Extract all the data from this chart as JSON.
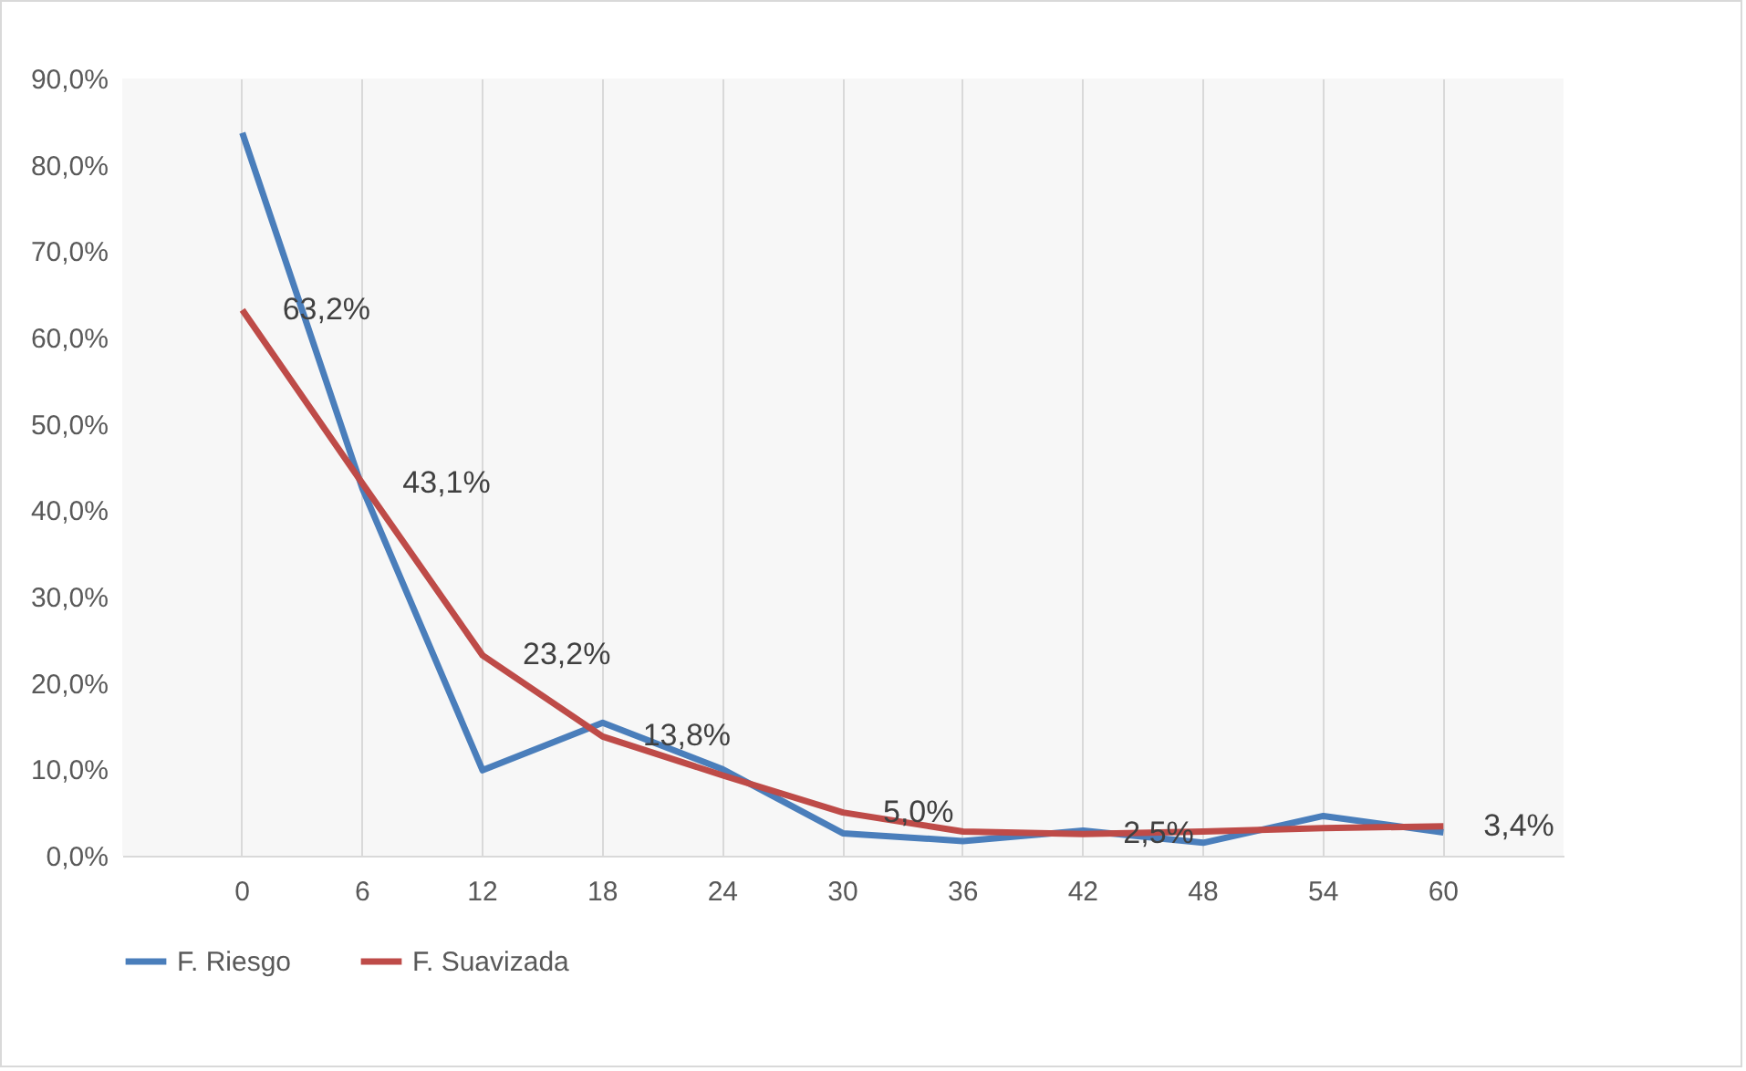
{
  "chart_data": {
    "type": "line",
    "categories": [
      "0",
      "6",
      "12",
      "18",
      "24",
      "30",
      "36",
      "42",
      "48",
      "54",
      "60"
    ],
    "series": [
      {
        "name": "F. Riesgo",
        "color": "#4a7ebb",
        "values": [
          83.7,
          42.5,
          9.9,
          15.4,
          10,
          2.6,
          1.7,
          2.9,
          1.5,
          4.6,
          2.7
        ]
      },
      {
        "name": "F. Suavizada",
        "color": "#be4b48",
        "values": [
          63.2,
          43.1,
          23.2,
          13.8,
          9.3,
          5.0,
          2.8,
          2.5,
          2.8,
          3.2,
          3.4
        ],
        "value_labels": [
          "63,2%",
          "43,1%",
          "23,2%",
          "13,8%",
          null,
          "5,0%",
          null,
          "2,5%",
          null,
          null,
          "3,4%"
        ]
      }
    ],
    "ylim": [
      0,
      90
    ],
    "yticks": [
      {
        "value": 0,
        "label": "0,0%"
      },
      {
        "value": 10,
        "label": "10,0%"
      },
      {
        "value": 20,
        "label": "20,0%"
      },
      {
        "value": 30,
        "label": "30,0%"
      },
      {
        "value": 40,
        "label": "40,0%"
      },
      {
        "value": 50,
        "label": "50,0%"
      },
      {
        "value": 60,
        "label": "60,0%"
      },
      {
        "value": 70,
        "label": "70,0%"
      },
      {
        "value": 80,
        "label": "80,0%"
      },
      {
        "value": 90,
        "label": "90,0%"
      }
    ],
    "grid": "x",
    "legend": "bottom",
    "line_style": "solid",
    "marker": "none"
  }
}
